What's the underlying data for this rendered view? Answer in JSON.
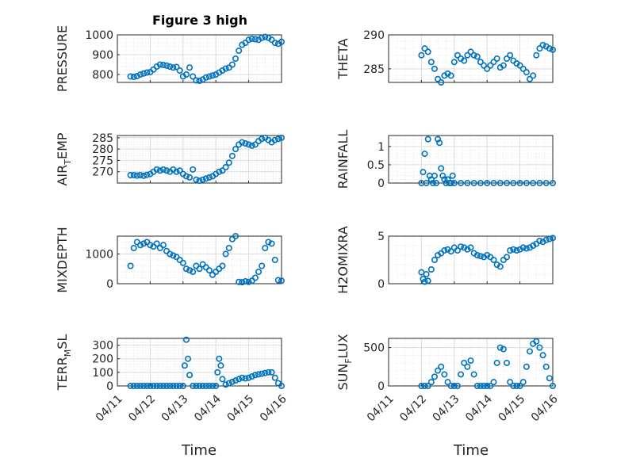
{
  "title": "Figure 3 high",
  "x_label": "Time",
  "x_ticks": [
    "04/11",
    "04/12",
    "04/13",
    "04/14",
    "04/15",
    "04/16"
  ],
  "colors": {
    "marker": "#0072bd",
    "axis": "#262626",
    "grid": "#dcdcdc"
  },
  "chart_data": [
    {
      "type": "scatter",
      "ylabel_main": "PRESSURE",
      "ylabel_sub": "",
      "ylim": [
        760,
        1000
      ],
      "yticks": [
        800,
        900,
        1000
      ],
      "grid": true,
      "x": [
        1.4,
        1.5,
        1.6,
        1.7,
        1.8,
        1.9,
        2.0,
        2.1,
        2.2,
        2.3,
        2.4,
        2.5,
        2.6,
        2.7,
        2.8,
        2.9,
        3.0,
        3.1,
        3.2,
        3.3,
        3.4,
        3.5,
        3.6,
        3.7,
        3.8,
        3.9,
        4.0,
        4.1,
        4.2,
        4.3,
        4.4,
        4.5,
        4.6,
        4.7,
        4.8,
        4.9,
        5.0,
        5.1,
        5.2,
        5.3,
        5.4,
        5.5,
        5.6,
        5.7,
        5.8,
        5.9,
        6.0
      ],
      "y": [
        790,
        788,
        792,
        800,
        805,
        810,
        812,
        825,
        840,
        850,
        848,
        845,
        840,
        835,
        838,
        820,
        790,
        800,
        835,
        790,
        770,
        768,
        775,
        785,
        790,
        795,
        800,
        810,
        820,
        830,
        835,
        850,
        880,
        920,
        950,
        960,
        975,
        980,
        978,
        975,
        985,
        990,
        985,
        975,
        960,
        955,
        965
      ]
    },
    {
      "type": "scatter",
      "ylabel_main": "THETA",
      "ylabel_sub": "",
      "ylim": [
        283,
        290
      ],
      "yticks": [
        285,
        290
      ],
      "grid": true,
      "x": [
        2.0,
        2.1,
        2.2,
        2.3,
        2.4,
        2.5,
        2.6,
        2.7,
        2.8,
        2.9,
        3.0,
        3.1,
        3.2,
        3.3,
        3.4,
        3.5,
        3.6,
        3.7,
        3.8,
        3.9,
        4.0,
        4.1,
        4.2,
        4.3,
        4.4,
        4.5,
        4.6,
        4.7,
        4.8,
        4.9,
        5.0,
        5.1,
        5.2,
        5.3,
        5.4,
        5.5,
        5.6,
        5.7,
        5.8,
        5.9,
        6.0
      ],
      "y": [
        287,
        288,
        287.5,
        286,
        285,
        283.5,
        283,
        284,
        284.3,
        284,
        286,
        287,
        286.5,
        286.2,
        287,
        287.5,
        287,
        286.8,
        286,
        285.5,
        285,
        285.5,
        286,
        286.5,
        285.2,
        285.5,
        286.5,
        287,
        286.2,
        285.8,
        285.5,
        285,
        284.5,
        283.5,
        284,
        287,
        288,
        288.5,
        288.3,
        288,
        287.8
      ]
    },
    {
      "type": "scatter",
      "ylabel_main": "AIR",
      "ylabel_sub": "T",
      "ylabel_tail": "EMP",
      "ylim": [
        265,
        286
      ],
      "yticks": [
        270,
        275,
        280,
        285
      ],
      "grid": true,
      "x": [
        1.4,
        1.5,
        1.6,
        1.7,
        1.8,
        1.9,
        2.0,
        2.1,
        2.2,
        2.3,
        2.4,
        2.5,
        2.6,
        2.7,
        2.8,
        2.9,
        3.0,
        3.1,
        3.2,
        3.3,
        3.4,
        3.5,
        3.6,
        3.7,
        3.8,
        3.9,
        4.0,
        4.1,
        4.2,
        4.3,
        4.4,
        4.5,
        4.6,
        4.7,
        4.8,
        4.9,
        5.0,
        5.1,
        5.2,
        5.3,
        5.4,
        5.5,
        5.6,
        5.7,
        5.8,
        5.9,
        6.0
      ],
      "y": [
        268.5,
        268.5,
        268.3,
        268.5,
        268.2,
        268.6,
        269,
        270,
        271,
        270.5,
        271,
        270.5,
        270,
        271,
        270,
        270.5,
        269,
        268,
        267.5,
        271,
        266.5,
        266,
        266.5,
        267,
        267.5,
        268,
        269,
        270,
        270.5,
        272,
        274,
        277,
        280,
        282,
        283,
        282.5,
        282,
        281.5,
        282,
        283.5,
        284.5,
        285,
        284,
        283,
        284,
        284.5,
        285
      ]
    },
    {
      "type": "scatter",
      "ylabel_main": "RAINFALL",
      "ylabel_sub": "",
      "ylim": [
        0,
        1.3
      ],
      "yticks": [
        0,
        0.5,
        1
      ],
      "ytick_labels": [
        "0",
        "0.5",
        "1"
      ],
      "grid": true,
      "x": [
        2.0,
        2.05,
        2.1,
        2.15,
        2.2,
        2.25,
        2.3,
        2.35,
        2.4,
        2.45,
        2.5,
        2.55,
        2.6,
        2.65,
        2.7,
        2.75,
        2.8,
        2.85,
        2.9,
        2.95,
        3.0,
        3.2,
        3.4,
        3.6,
        3.8,
        4.0,
        4.2,
        4.4,
        4.6,
        4.8,
        5.0,
        5.2,
        5.4,
        5.6,
        5.8,
        6.0
      ],
      "y": [
        0,
        0.3,
        0.8,
        0,
        1.2,
        0.2,
        0.1,
        0,
        0.2,
        0,
        1.2,
        1.1,
        0.4,
        0.2,
        0.1,
        0,
        0.1,
        0,
        0,
        0.2,
        0,
        0,
        0,
        0,
        0,
        0,
        0,
        0,
        0,
        0,
        0,
        0,
        0,
        0,
        0,
        0
      ]
    },
    {
      "type": "scatter",
      "ylabel_main": "MIXDEPTH",
      "ylabel_sub": "",
      "ylim": [
        0,
        1600
      ],
      "yticks": [
        0,
        1000
      ],
      "grid": true,
      "x": [
        1.4,
        1.5,
        1.6,
        1.7,
        1.8,
        1.9,
        2.0,
        2.1,
        2.2,
        2.3,
        2.4,
        2.5,
        2.6,
        2.7,
        2.8,
        2.9,
        3.0,
        3.1,
        3.2,
        3.3,
        3.4,
        3.5,
        3.6,
        3.7,
        3.8,
        3.9,
        4.0,
        4.1,
        4.2,
        4.3,
        4.4,
        4.5,
        4.6,
        4.7,
        4.8,
        4.9,
        5.0,
        5.1,
        5.2,
        5.3,
        5.4,
        5.5,
        5.6,
        5.7,
        5.8,
        5.9,
        6.0
      ],
      "y": [
        600,
        1200,
        1400,
        1300,
        1350,
        1400,
        1300,
        1250,
        1350,
        1200,
        1300,
        1100,
        1000,
        950,
        900,
        800,
        700,
        500,
        450,
        400,
        600,
        500,
        650,
        550,
        450,
        300,
        400,
        500,
        600,
        1000,
        1200,
        1500,
        1600,
        60,
        50,
        80,
        60,
        100,
        200,
        400,
        600,
        1200,
        1400,
        1350,
        800,
        120,
        100
      ]
    },
    {
      "type": "scatter",
      "ylabel_main": "H2OMIXRA",
      "ylabel_sub": "",
      "ylim": [
        0,
        5
      ],
      "yticks": [
        0,
        5
      ],
      "grid": true,
      "x": [
        2.0,
        2.05,
        2.1,
        2.15,
        2.2,
        2.3,
        2.4,
        2.5,
        2.6,
        2.7,
        2.8,
        2.9,
        3.0,
        3.1,
        3.2,
        3.3,
        3.4,
        3.5,
        3.6,
        3.7,
        3.8,
        3.9,
        4.0,
        4.1,
        4.2,
        4.3,
        4.4,
        4.5,
        4.6,
        4.7,
        4.8,
        4.9,
        5.0,
        5.1,
        5.2,
        5.3,
        5.4,
        5.5,
        5.6,
        5.7,
        5.8,
        5.9,
        6.0
      ],
      "y": [
        1.2,
        0.5,
        0.2,
        1,
        0.3,
        1.5,
        2.5,
        3,
        3.2,
        3.5,
        3.6,
        3.4,
        3.8,
        3.5,
        3.9,
        3.8,
        3.6,
        3.8,
        3.2,
        3.0,
        2.9,
        2.8,
        3.0,
        2.8,
        2.5,
        2.0,
        1.8,
        2.5,
        2.8,
        3.5,
        3.6,
        3.5,
        3.6,
        3.8,
        3.7,
        3.8,
        4.0,
        4.2,
        4.5,
        4.4,
        4.6,
        4.7,
        4.8
      ]
    },
    {
      "type": "scatter",
      "ylabel_main": "TERR",
      "ylabel_sub": "M",
      "ylabel_tail": "SL",
      "ylim": [
        0,
        350
      ],
      "yticks": [
        0,
        100,
        200,
        300
      ],
      "grid": true,
      "x": [
        1.4,
        1.5,
        1.6,
        1.7,
        1.8,
        1.9,
        2.0,
        2.1,
        2.2,
        2.3,
        2.4,
        2.5,
        2.6,
        2.7,
        2.8,
        2.9,
        3.0,
        3.05,
        3.1,
        3.15,
        3.2,
        3.3,
        3.4,
        3.5,
        3.6,
        3.7,
        3.8,
        3.9,
        4.0,
        4.05,
        4.1,
        4.15,
        4.2,
        4.3,
        4.4,
        4.5,
        4.6,
        4.7,
        4.8,
        4.9,
        5.0,
        5.1,
        5.2,
        5.3,
        5.4,
        5.5,
        5.6,
        5.7,
        5.8,
        5.9,
        6.0
      ],
      "y": [
        0,
        0,
        0,
        0,
        0,
        0,
        0,
        0,
        0,
        0,
        0,
        0,
        0,
        0,
        0,
        0,
        0,
        150,
        340,
        200,
        80,
        0,
        0,
        0,
        0,
        0,
        0,
        0,
        0,
        100,
        200,
        150,
        50,
        10,
        20,
        30,
        40,
        50,
        60,
        55,
        60,
        70,
        80,
        85,
        90,
        95,
        100,
        100,
        60,
        20,
        0
      ]
    },
    {
      "type": "scatter",
      "ylabel_main": "SUN",
      "ylabel_sub": "F",
      "ylabel_tail": "LUX",
      "ylim": [
        0,
        620
      ],
      "yticks": [
        0,
        500
      ],
      "grid": true,
      "x": [
        2.0,
        2.1,
        2.2,
        2.3,
        2.4,
        2.5,
        2.6,
        2.7,
        2.8,
        2.9,
        3.0,
        3.1,
        3.2,
        3.3,
        3.4,
        3.5,
        3.6,
        3.7,
        3.8,
        3.9,
        4.0,
        4.1,
        4.2,
        4.3,
        4.4,
        4.5,
        4.6,
        4.7,
        4.8,
        4.9,
        5.0,
        5.1,
        5.2,
        5.3,
        5.4,
        5.5,
        5.6,
        5.7,
        5.8,
        5.9,
        6.0
      ],
      "y": [
        0,
        0,
        0,
        50,
        120,
        200,
        250,
        150,
        50,
        0,
        0,
        0,
        150,
        300,
        250,
        330,
        150,
        0,
        0,
        0,
        0,
        0,
        50,
        300,
        500,
        480,
        300,
        50,
        0,
        0,
        0,
        50,
        250,
        450,
        550,
        580,
        500,
        400,
        250,
        100,
        0
      ]
    }
  ]
}
